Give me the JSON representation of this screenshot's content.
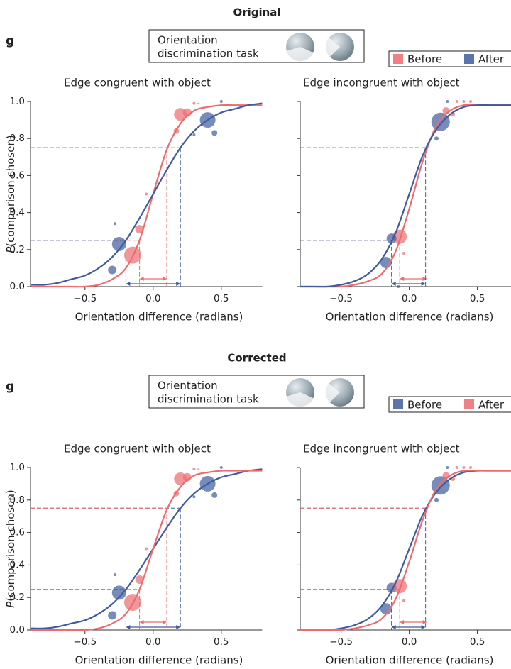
{
  "sections": [
    {
      "title": "Original",
      "panel_label": "g",
      "task_label": [
        "Orientation",
        "discrimination task"
      ]
    },
    {
      "title": "Corrected",
      "panel_label": "g",
      "task_label": [
        "Orientation",
        "discrimination task"
      ]
    }
  ],
  "chart_data": [
    {
      "type": "psychometric",
      "title": "Edge congruent with object",
      "xlabel": "Orientation difference (radians)",
      "ylabel": "P(comparison chosen)",
      "xlim": [
        -0.9,
        0.8
      ],
      "ylim": [
        0,
        1
      ],
      "xticks": [
        {
          "value": -0.5,
          "label": "−0.5"
        },
        {
          "value": 0,
          "label": "0.0"
        },
        0.5
      ],
      "yticks": [
        {
          "value": 0,
          "label": "0.0"
        },
        0.2,
        0.4,
        0.6,
        0.8,
        {
          "value": 1,
          "label": "1.0"
        }
      ],
      "show_ytick_labels": true,
      "threshold_levels": [
        0.25,
        0.75
      ],
      "x": [
        -0.9,
        -0.8,
        -0.7,
        -0.6,
        -0.5,
        -0.4,
        -0.3,
        -0.2,
        -0.1,
        0,
        0.1,
        0.2,
        0.3,
        0.4,
        0.5,
        0.6,
        0.7,
        0.8
      ],
      "series": [
        {
          "name": "Before",
          "color": "#ec6b6e",
          "values": [
            0,
            0,
            0,
            0,
            0,
            0.01,
            0.04,
            0.1,
            0.25,
            0.5,
            0.74,
            0.88,
            0.95,
            0.97,
            0.98,
            0.98,
            0.98,
            0.98
          ],
          "thresholds": [
            -0.1,
            0.1
          ],
          "points_x": [
            -0.15,
            -0.1,
            -0.05,
            0.17,
            0.2,
            0.25,
            0.3,
            0.33
          ],
          "points_y": [
            0.17,
            0.31,
            0.5,
            0.84,
            0.93,
            0.94,
            0.99,
            0.99
          ],
          "points_size": [
            12,
            6,
            2,
            4,
            9,
            6,
            2,
            1
          ]
        },
        {
          "name": "After",
          "color": "#3f5b9e",
          "values": [
            0.01,
            0.01,
            0.02,
            0.04,
            0.06,
            0.1,
            0.16,
            0.25,
            0.37,
            0.5,
            0.63,
            0.75,
            0.84,
            0.9,
            0.94,
            0.96,
            0.98,
            0.99
          ],
          "thresholds": [
            -0.2,
            0.2
          ],
          "points_x": [
            -0.3,
            -0.25,
            -0.28,
            0.3,
            0.4,
            0.45,
            0.5
          ],
          "points_y": [
            0.09,
            0.23,
            0.34,
            0.82,
            0.9,
            0.83,
            1.0
          ],
          "points_size": [
            6,
            10,
            2,
            2,
            11,
            4,
            2
          ]
        }
      ]
    },
    {
      "type": "psychometric",
      "title": "Edge incongruent with object",
      "xlabel": "Orientation difference (radians)",
      "xlim": [
        -0.8,
        0.8
      ],
      "ylim": [
        0,
        1
      ],
      "xticks": [
        {
          "value": -0.5,
          "label": "−0.5"
        },
        {
          "value": 0,
          "label": "0.0"
        },
        0.5
      ],
      "yticks": [
        0,
        0.2,
        0.4,
        0.6,
        0.8,
        1
      ],
      "show_ytick_labels": false,
      "threshold_levels": [
        0.25,
        0.75
      ],
      "x": [
        -0.8,
        -0.7,
        -0.6,
        -0.5,
        -0.4,
        -0.3,
        -0.2,
        -0.1,
        0,
        0.1,
        0.2,
        0.3,
        0.4,
        0.5,
        0.6,
        0.7,
        0.8
      ],
      "series": [
        {
          "name": "Before",
          "color": "#ec6b6e",
          "values": [
            0,
            0,
            0,
            0,
            0.01,
            0.03,
            0.07,
            0.19,
            0.42,
            0.68,
            0.87,
            0.95,
            0.98,
            0.98,
            0.98,
            0.98,
            0.98
          ],
          "thresholds": [
            -0.07,
            0.13
          ],
          "points_x": [
            -0.07,
            -0.04,
            0.27,
            0.32,
            0.35,
            0.4,
            0.45
          ],
          "points_y": [
            0.27,
            0.18,
            0.95,
            0.93,
            1.0,
            1.0,
            1.0
          ],
          "points_size": [
            10,
            2,
            5,
            3,
            2,
            2,
            2
          ]
        },
        {
          "name": "After",
          "color": "#3f5b9e",
          "values": [
            0,
            0,
            0,
            0.01,
            0.03,
            0.07,
            0.15,
            0.29,
            0.5,
            0.71,
            0.85,
            0.93,
            0.97,
            0.98,
            0.98,
            0.98,
            0.98
          ],
          "thresholds": [
            -0.13,
            0.12
          ],
          "points_x": [
            -0.17,
            -0.13,
            -0.08,
            0.2,
            0.23,
            0.28
          ],
          "points_y": [
            0.13,
            0.26,
            0.0,
            0.8,
            0.89,
            1.0
          ],
          "points_size": [
            8,
            7,
            2,
            3,
            13,
            2
          ]
        }
      ]
    },
    {
      "type": "psychometric",
      "title": "Edge congruent with object",
      "xlabel": "Orientation difference (radians)",
      "ylabel": "P(comparison chosen)",
      "xlim": [
        -0.9,
        0.8
      ],
      "ylim": [
        0,
        1
      ],
      "xticks": [
        {
          "value": -0.5,
          "label": "−0.5"
        },
        {
          "value": 0,
          "label": "0.0"
        },
        0.5
      ],
      "yticks": [
        {
          "value": 0,
          "label": "0.0"
        },
        0.2,
        0.4,
        0.6,
        0.8,
        {
          "value": 1,
          "label": "1.0"
        }
      ],
      "show_ytick_labels": true,
      "threshold_levels": [
        0.25,
        0.75
      ],
      "x": [
        -0.9,
        -0.8,
        -0.7,
        -0.6,
        -0.5,
        -0.4,
        -0.3,
        -0.2,
        -0.1,
        0,
        0.1,
        0.2,
        0.3,
        0.4,
        0.5,
        0.6,
        0.7,
        0.8
      ],
      "series": [
        {
          "name": "Before",
          "color": "#3f5b9e",
          "values": [
            0.01,
            0.01,
            0.02,
            0.04,
            0.06,
            0.1,
            0.16,
            0.25,
            0.37,
            0.5,
            0.63,
            0.75,
            0.84,
            0.9,
            0.94,
            0.96,
            0.98,
            0.99
          ],
          "thresholds": [
            -0.2,
            0.2
          ],
          "points_x": [
            -0.3,
            -0.25,
            -0.28,
            0.3,
            0.4,
            0.45,
            0.5
          ],
          "points_y": [
            0.09,
            0.23,
            0.34,
            0.82,
            0.9,
            0.83,
            1.0
          ],
          "points_size": [
            6,
            10,
            2,
            2,
            11,
            4,
            2
          ]
        },
        {
          "name": "After",
          "color": "#ec6b6e",
          "values": [
            0,
            0,
            0,
            0,
            0,
            0.01,
            0.04,
            0.1,
            0.25,
            0.5,
            0.74,
            0.88,
            0.95,
            0.97,
            0.98,
            0.98,
            0.98,
            0.98
          ],
          "thresholds": [
            -0.1,
            0.1
          ],
          "points_x": [
            -0.15,
            -0.1,
            -0.05,
            0.17,
            0.2,
            0.25,
            0.3,
            0.33
          ],
          "points_y": [
            0.17,
            0.31,
            0.5,
            0.84,
            0.93,
            0.94,
            0.99,
            0.99
          ],
          "points_size": [
            12,
            6,
            2,
            4,
            9,
            6,
            2,
            1
          ]
        }
      ]
    },
    {
      "type": "psychometric",
      "title": "Edge incongruent with object",
      "xlabel": "Orientation difference (radians)",
      "xlim": [
        -0.8,
        0.8
      ],
      "ylim": [
        0,
        1
      ],
      "xticks": [
        {
          "value": -0.5,
          "label": "−0.5"
        },
        {
          "value": 0,
          "label": "0.0"
        },
        0.5
      ],
      "yticks": [
        0,
        0.2,
        0.4,
        0.6,
        0.8,
        1
      ],
      "show_ytick_labels": false,
      "threshold_levels": [
        0.25,
        0.75
      ],
      "x": [
        -0.8,
        -0.7,
        -0.6,
        -0.5,
        -0.4,
        -0.3,
        -0.2,
        -0.1,
        0,
        0.1,
        0.2,
        0.3,
        0.4,
        0.5,
        0.6,
        0.7,
        0.8
      ],
      "series": [
        {
          "name": "Before",
          "color": "#3f5b9e",
          "values": [
            0,
            0,
            0,
            0.01,
            0.03,
            0.07,
            0.15,
            0.29,
            0.5,
            0.71,
            0.85,
            0.93,
            0.97,
            0.98,
            0.98,
            0.98,
            0.98
          ],
          "thresholds": [
            -0.13,
            0.12
          ],
          "points_x": [
            -0.17,
            -0.13,
            0.2,
            0.23,
            0.28
          ],
          "points_y": [
            0.13,
            0.26,
            0.8,
            0.89,
            1.0
          ],
          "points_size": [
            8,
            7,
            3,
            13,
            2
          ]
        },
        {
          "name": "After",
          "color": "#ec6b6e",
          "values": [
            0,
            0,
            0,
            0,
            0.01,
            0.03,
            0.07,
            0.19,
            0.42,
            0.68,
            0.87,
            0.95,
            0.98,
            0.98,
            0.98,
            0.98,
            0.98
          ],
          "thresholds": [
            -0.07,
            0.13
          ],
          "points_x": [
            -0.07,
            -0.04,
            -0.02,
            0.27,
            0.32,
            0.35,
            0.4,
            0.45
          ],
          "points_y": [
            0.27,
            0.18,
            0.0,
            0.95,
            0.93,
            1.0,
            1.0,
            1.0
          ],
          "points_size": [
            10,
            2,
            2,
            5,
            3,
            2,
            2,
            2
          ]
        }
      ]
    }
  ]
}
